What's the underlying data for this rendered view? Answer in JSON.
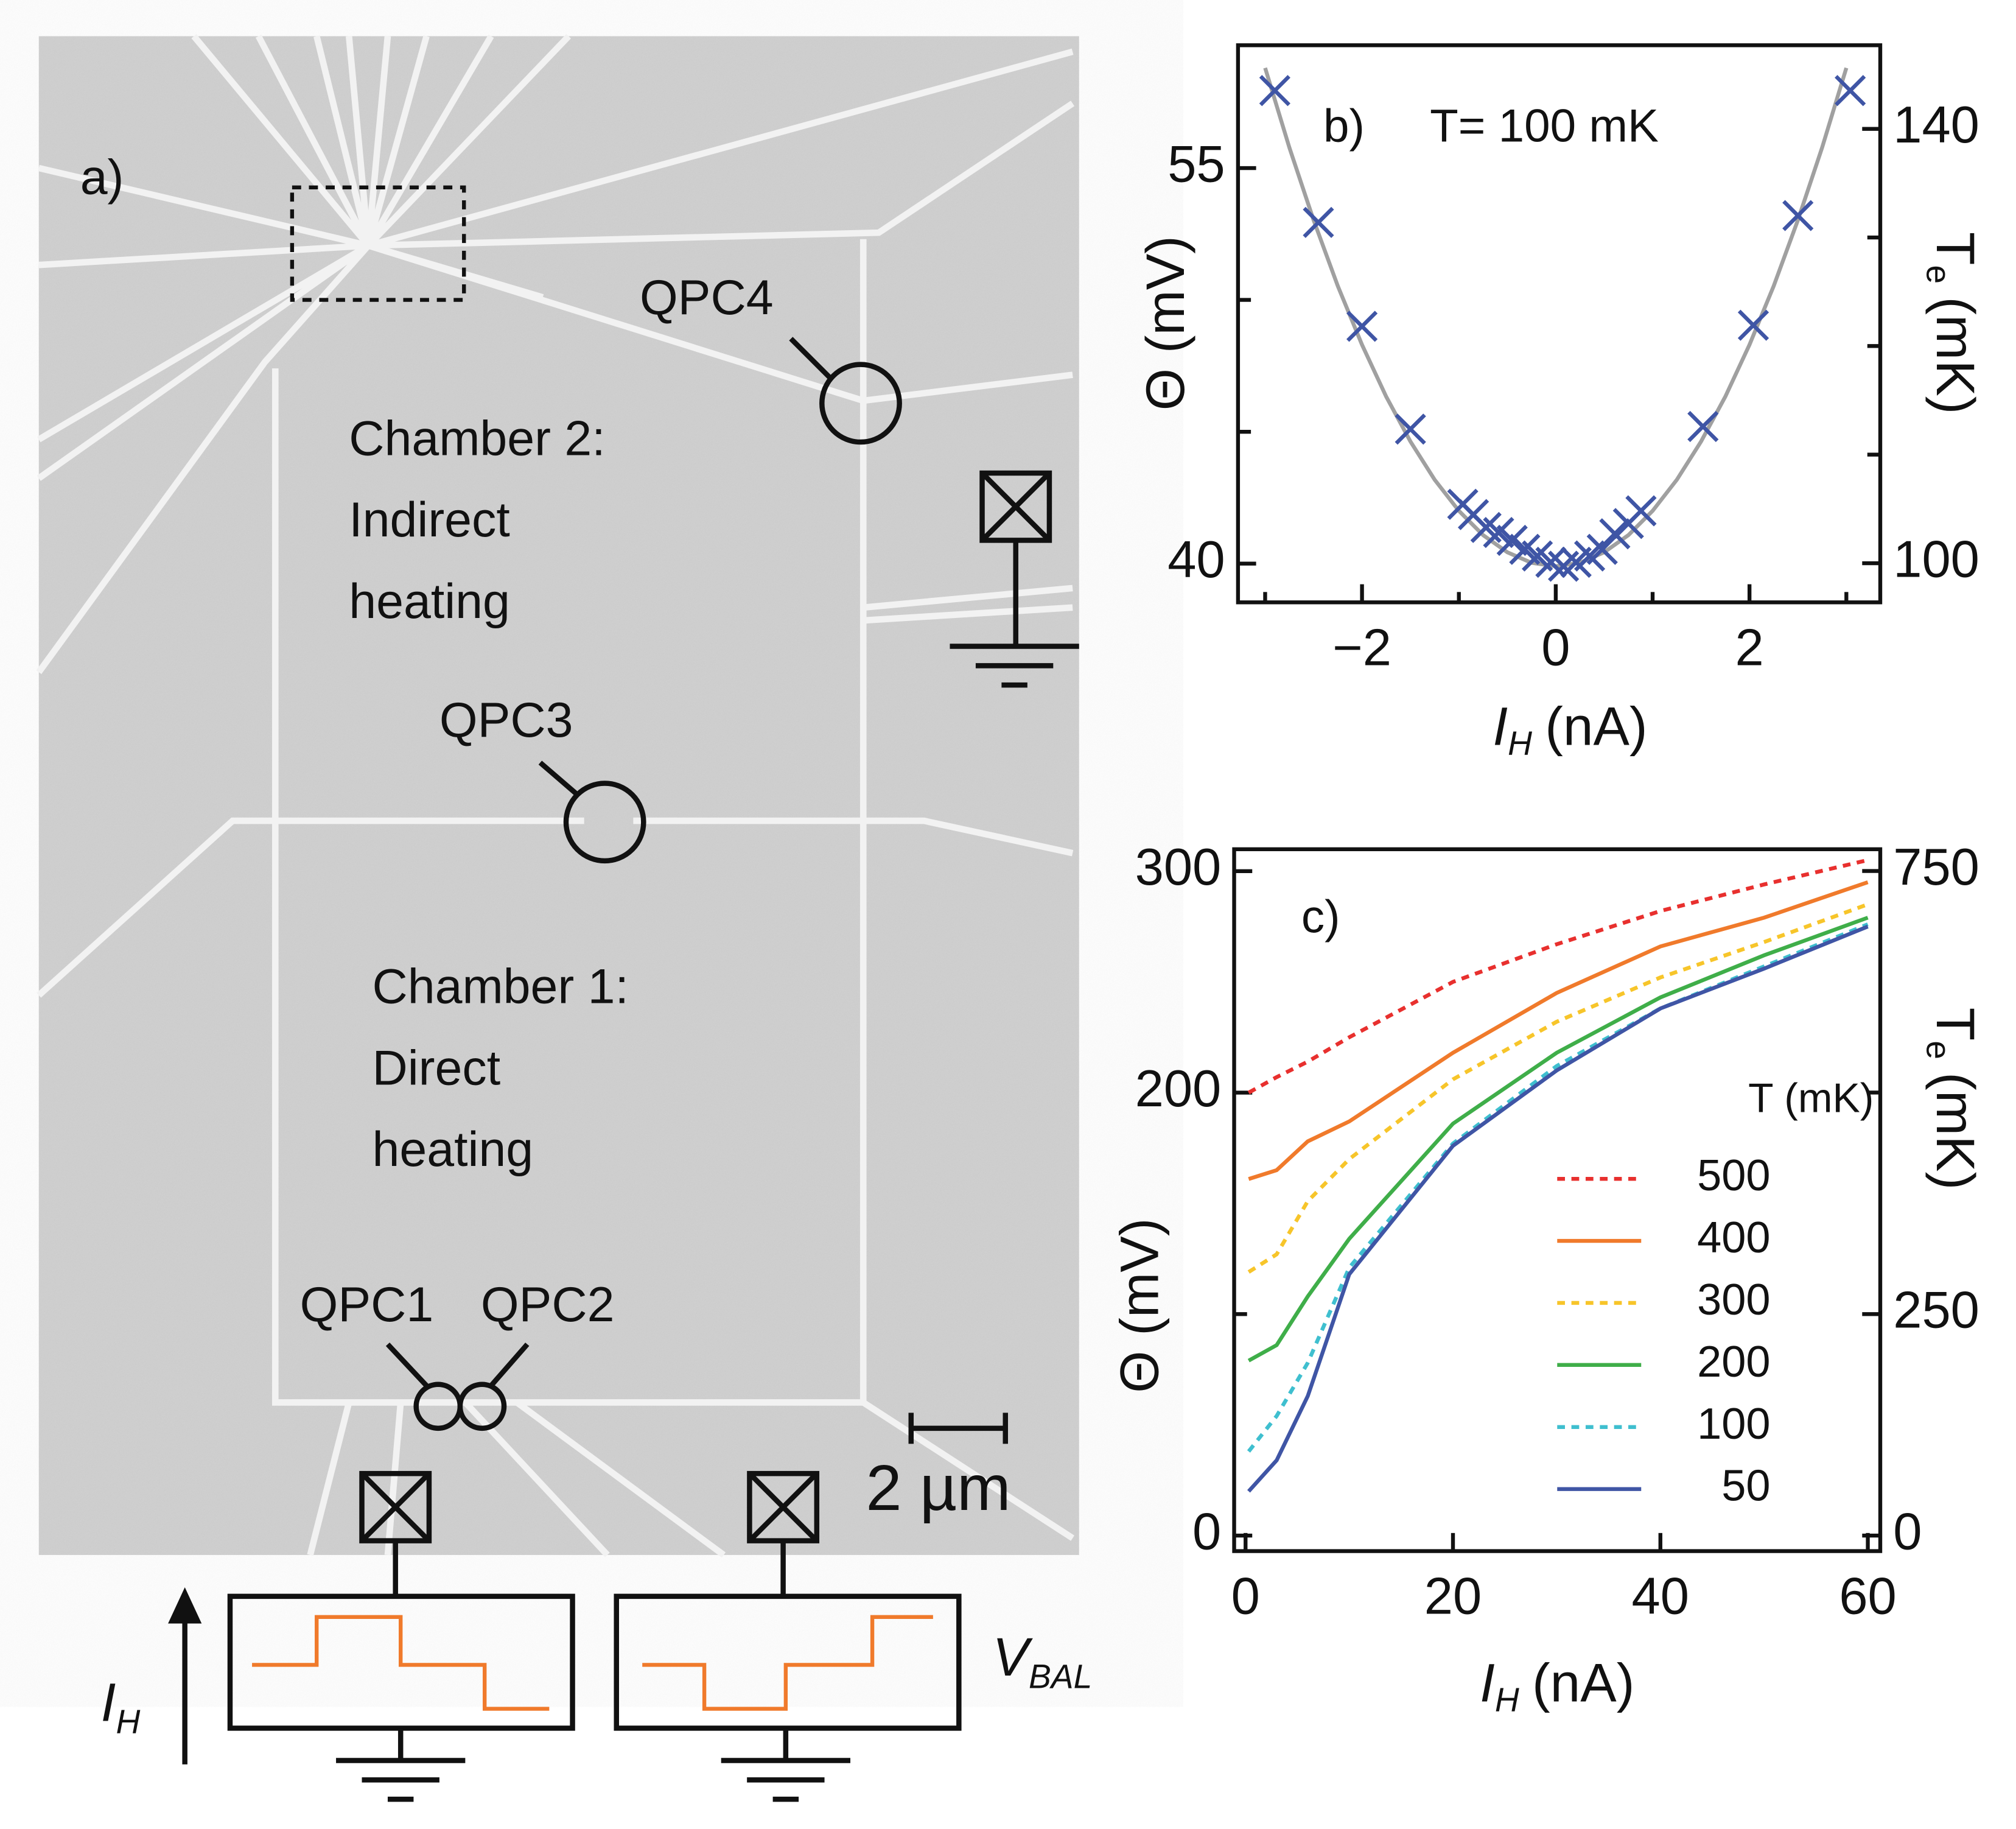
{
  "diagram": {
    "panel_label": "a)",
    "qpc4": "QPC4",
    "qpc3": "QPC3",
    "qpc1": "QPC1",
    "qpc2": "QPC2",
    "chamber2": [
      "Chamber 2:",
      "Indirect",
      "heating"
    ],
    "chamber1": [
      "Chamber 1:",
      "Direct",
      "heating"
    ],
    "scale_bar": "2 µm",
    "current_label": {
      "symbol": "I",
      "subscript": "H"
    },
    "voltage_label": {
      "symbol": "V",
      "subscript": "BAL"
    }
  },
  "chart_data": [
    {
      "type": "scatter",
      "annotations": [
        "b)",
        "T= 100 mK"
      ],
      "ylabel": "Θ (mV)",
      "y2label": {
        "symbol": "T",
        "subscript": "e",
        "unit": "(mK)"
      },
      "xlabel": {
        "symbol": "I",
        "subscript": "H",
        "unit": "(nA)"
      },
      "xlim": [
        -3.28,
        3.35
      ],
      "xticks": [
        {
          "value": -2,
          "label": "−2"
        },
        0,
        2
      ],
      "xminor": [
        -3,
        -1,
        1,
        3
      ],
      "ylim": [
        38.53,
        59.66
      ],
      "yticks": [
        40,
        55
      ],
      "yminor": [
        45,
        50
      ],
      "y2lim": [
        96.4,
        147.7
      ],
      "y2ticks": [
        100,
        140
      ],
      "y2minor": [
        110,
        120,
        130
      ],
      "series": [
        {
          "marker": "x",
          "color": "#3f55a5",
          "x": [
            -2.9,
            -2.45,
            -2,
            -1.5,
            -0.96,
            -0.85,
            -0.72,
            -0.59,
            -0.45,
            -0.32,
            -0.19,
            -0.05,
            0.08,
            0.21,
            0.35,
            0.48,
            0.61,
            0.75,
            0.88,
            1.52,
            2.04,
            2.5,
            3.04
          ],
          "values": [
            57.94,
            52.94,
            49.0,
            45.1,
            42.25,
            41.86,
            41.37,
            41.18,
            40.88,
            40.54,
            40.29,
            40.05,
            39.9,
            40.05,
            40.29,
            40.54,
            41.13,
            41.52,
            42.0,
            45.2,
            49.04,
            53.2,
            57.94
          ]
        },
        {
          "marker": "line",
          "color": "#a0a0a0",
          "x": [
            -3,
            -2.75,
            -2.5,
            -2.25,
            -2,
            -1.75,
            -1.5,
            -1.25,
            -1,
            -0.75,
            -0.5,
            -0.25,
            0,
            0.25,
            0.5,
            0.75,
            1,
            1.25,
            1.5,
            1.75,
            2,
            2.25,
            2.5,
            2.75,
            3
          ],
          "values": [
            58.8,
            55.78,
            53.03,
            50.53,
            48.3,
            46.33,
            44.63,
            43.18,
            42.0,
            41.08,
            40.43,
            40.03,
            39.9,
            40.03,
            40.43,
            41.08,
            42.0,
            43.18,
            44.63,
            46.33,
            48.3,
            50.53,
            53.03,
            55.78,
            58.8
          ]
        }
      ]
    },
    {
      "type": "line",
      "annotations": [
        "c)"
      ],
      "ylabel": "Θ (mV)",
      "y2label": {
        "symbol": "T",
        "subscript": "e",
        "unit": "(mK)"
      },
      "xlabel": {
        "symbol": "I",
        "subscript": "H",
        "unit": "(nA)"
      },
      "xlim": [
        -1.1,
        61.2
      ],
      "xticks": [
        0,
        20,
        40,
        60
      ],
      "ylim": [
        -7,
        309.9
      ],
      "yticks": [
        0,
        200,
        300
      ],
      "yminor": [
        100
      ],
      "y2lim": [
        -17.5,
        774.6
      ],
      "y2ticks": [
        0,
        250,
        750
      ],
      "y2minor": [
        500
      ],
      "legend_title": "T (mK)",
      "legend": "lower right",
      "x": [
        0.3,
        3,
        6,
        10,
        20,
        30,
        40,
        50,
        60
      ],
      "series": [
        {
          "name": "500",
          "color": "#e8302e",
          "dashed": true,
          "values": [
            200,
            207,
            214,
            225,
            250,
            267,
            282,
            294,
            305
          ]
        },
        {
          "name": "400",
          "color": "#f07a2b",
          "dashed": false,
          "values": [
            161,
            165,
            178,
            187,
            218,
            245,
            266,
            279,
            295
          ]
        },
        {
          "name": "300",
          "color": "#f7c52a",
          "dashed": true,
          "values": [
            119,
            127,
            151,
            170,
            206,
            232,
            252,
            268,
            285
          ]
        },
        {
          "name": "200",
          "color": "#3fae49",
          "dashed": false,
          "values": [
            79,
            86,
            108,
            134,
            186,
            218,
            243,
            262,
            279
          ]
        },
        {
          "name": "100",
          "color": "#3fbfcf",
          "dashed": true,
          "values": [
            38,
            54,
            78,
            121,
            177,
            212,
            238,
            257,
            276
          ]
        },
        {
          "name": "50",
          "color": "#3f55a5",
          "dashed": false,
          "values": [
            20,
            34,
            63,
            118,
            176,
            210,
            238,
            256,
            275
          ]
        }
      ]
    }
  ]
}
